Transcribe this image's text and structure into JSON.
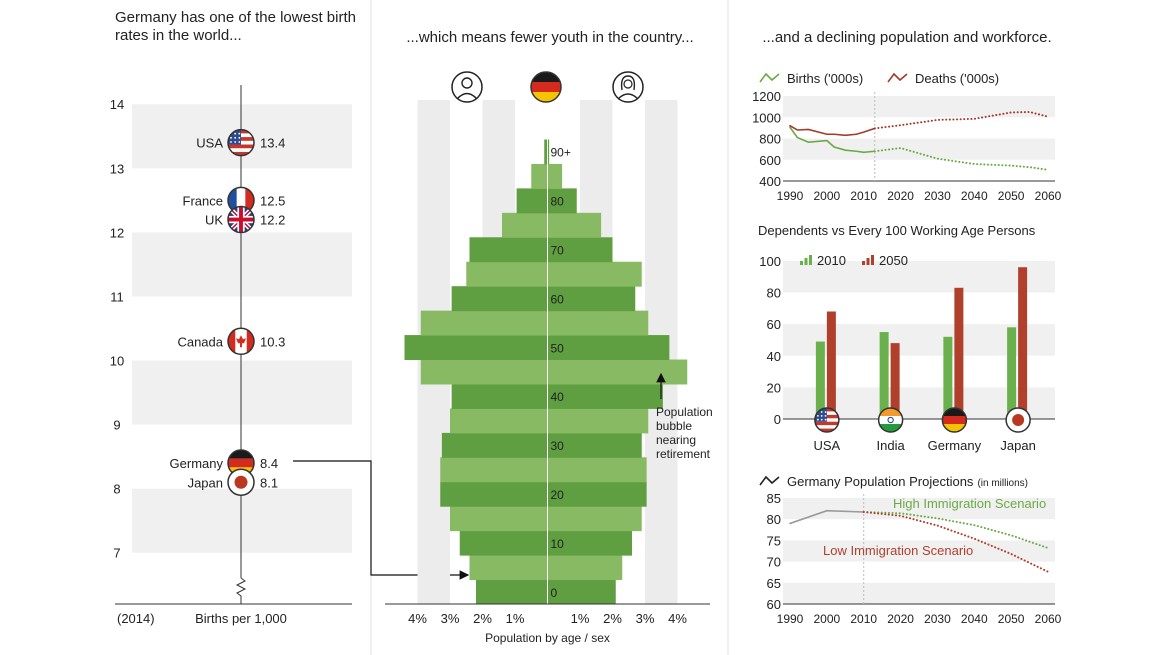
{
  "chart_data": [
    {
      "type": "dot",
      "title": "Germany has one of the lowest birth rates in the world...",
      "note": "(2014)",
      "xlabel": "Births per 1,000",
      "categories": [
        "USA",
        "France",
        "UK",
        "Canada",
        "Germany",
        "Japan"
      ],
      "values": [
        13.4,
        12.5,
        12.2,
        10.3,
        8.4,
        8.1
      ],
      "ylim": [
        6.2,
        14.3
      ],
      "yticks": [
        7,
        8,
        9,
        10,
        11,
        12,
        13,
        14
      ],
      "axis_break": true,
      "grid": true
    },
    {
      "type": "pyramid",
      "title": "...which means fewer youth in the country...",
      "xlabel": "Population by age / sex",
      "categories": [
        "0",
        null,
        "10",
        null,
        "20",
        null,
        "30",
        null,
        "40",
        null,
        "50",
        null,
        "60",
        null,
        "70",
        null,
        "80",
        null,
        "90+"
      ],
      "series": [
        {
          "values": [
            2.2,
            2.4,
            2.7,
            3.0,
            3.3,
            3.3,
            3.25,
            3.0,
            2.95,
            3.9,
            4.4,
            3.9,
            2.95,
            2.5,
            2.4,
            1.4,
            0.95,
            0.5,
            0.1
          ]
        },
        {
          "values": [
            2.1,
            2.3,
            2.6,
            2.9,
            3.05,
            3.05,
            2.9,
            3.1,
            3.55,
            4.3,
            3.75,
            3.1,
            2.7,
            2.9,
            2.0,
            1.65,
            0.9,
            0.45,
            0.05
          ]
        }
      ],
      "stripe_colors": [
        "#5f9e41",
        "#88ba63"
      ],
      "xlim": [
        -5,
        5
      ],
      "xticks": [
        {
          "value": -4,
          "label": "4%"
        },
        {
          "value": -3,
          "label": "3%"
        },
        {
          "value": -2,
          "label": "2%"
        },
        {
          "value": -1,
          "label": "1%"
        },
        {
          "value": 1,
          "label": "1%"
        },
        {
          "value": 2,
          "label": "2%"
        },
        {
          "value": 3,
          "label": "3%"
        },
        {
          "value": 4,
          "label": "4%"
        }
      ],
      "annotation": [
        "Population",
        "bubble",
        "nearing",
        "retirement"
      ]
    },
    {
      "type": "line",
      "title": "...and a declining population and workforce.",
      "x": [
        1990,
        1992,
        1995,
        2000,
        2002,
        2005,
        2008,
        2010,
        2013,
        2020,
        2030,
        2040,
        2050,
        2055,
        2060
      ],
      "series": [
        {
          "name": "Births ('000s)",
          "color": "#6aaa45",
          "values": [
            905,
            810,
            765,
            780,
            720,
            690,
            680,
            670,
            680,
            710,
            610,
            560,
            545,
            530,
            505
          ]
        },
        {
          "name": "Deaths ('000s)",
          "color": "#a33a2a",
          "values": [
            920,
            880,
            885,
            840,
            840,
            830,
            840,
            860,
            895,
            925,
            975,
            985,
            1045,
            1050,
            1005
          ]
        }
      ],
      "xlim": [
        1990,
        2060
      ],
      "xticks": [
        1990,
        2000,
        2010,
        2020,
        2030,
        2040,
        2050,
        2060
      ],
      "ylim": [
        400,
        1200
      ],
      "yticks": [
        400,
        600,
        800,
        1000,
        1200
      ],
      "grid": true,
      "legend": "top-left",
      "projection_start": 2013
    },
    {
      "type": "bar",
      "title": "Dependents vs Every 100 Working Age Persons",
      "categories": [
        "USA",
        "India",
        "Germany",
        "Japan"
      ],
      "series": [
        {
          "name": "2010",
          "color": "#6ab04c",
          "values": [
            49,
            55,
            52,
            58
          ]
        },
        {
          "name": "2050",
          "color": "#b0402c",
          "values": [
            68,
            48,
            83,
            96
          ]
        }
      ],
      "ylim": [
        0,
        105
      ],
      "yticks": [
        0,
        20,
        40,
        60,
        80,
        100
      ],
      "grid": true,
      "legend": "top-left"
    },
    {
      "type": "line",
      "title": "Germany Population Projections",
      "subtitle": "(in millions)",
      "x": [
        1990,
        2000,
        2010,
        2020,
        2030,
        2040,
        2050,
        2060
      ],
      "series": [
        {
          "color": "#9a9a9a",
          "values": [
            79,
            82,
            81.7,
            null,
            null,
            null,
            null,
            null
          ]
        },
        {
          "name": "High Immigration Scenario",
          "color": "#6aaa45",
          "style": "dotted",
          "values": [
            null,
            null,
            81.7,
            81.4,
            80.2,
            78.6,
            76.2,
            73.2
          ]
        },
        {
          "name": "Low Immigration Scenario",
          "color": "#b0402c",
          "style": "dotted",
          "values": [
            null,
            null,
            81.7,
            80.8,
            78.5,
            75.4,
            71.8,
            67.6
          ]
        }
      ],
      "xlim": [
        1990,
        2060
      ],
      "xticks": [
        1990,
        2000,
        2010,
        2020,
        2030,
        2040,
        2050,
        2060
      ],
      "ylim": [
        60,
        85
      ],
      "yticks": [
        60,
        65,
        70,
        75,
        80,
        85
      ],
      "grid": true,
      "projection_start": 2010
    }
  ]
}
